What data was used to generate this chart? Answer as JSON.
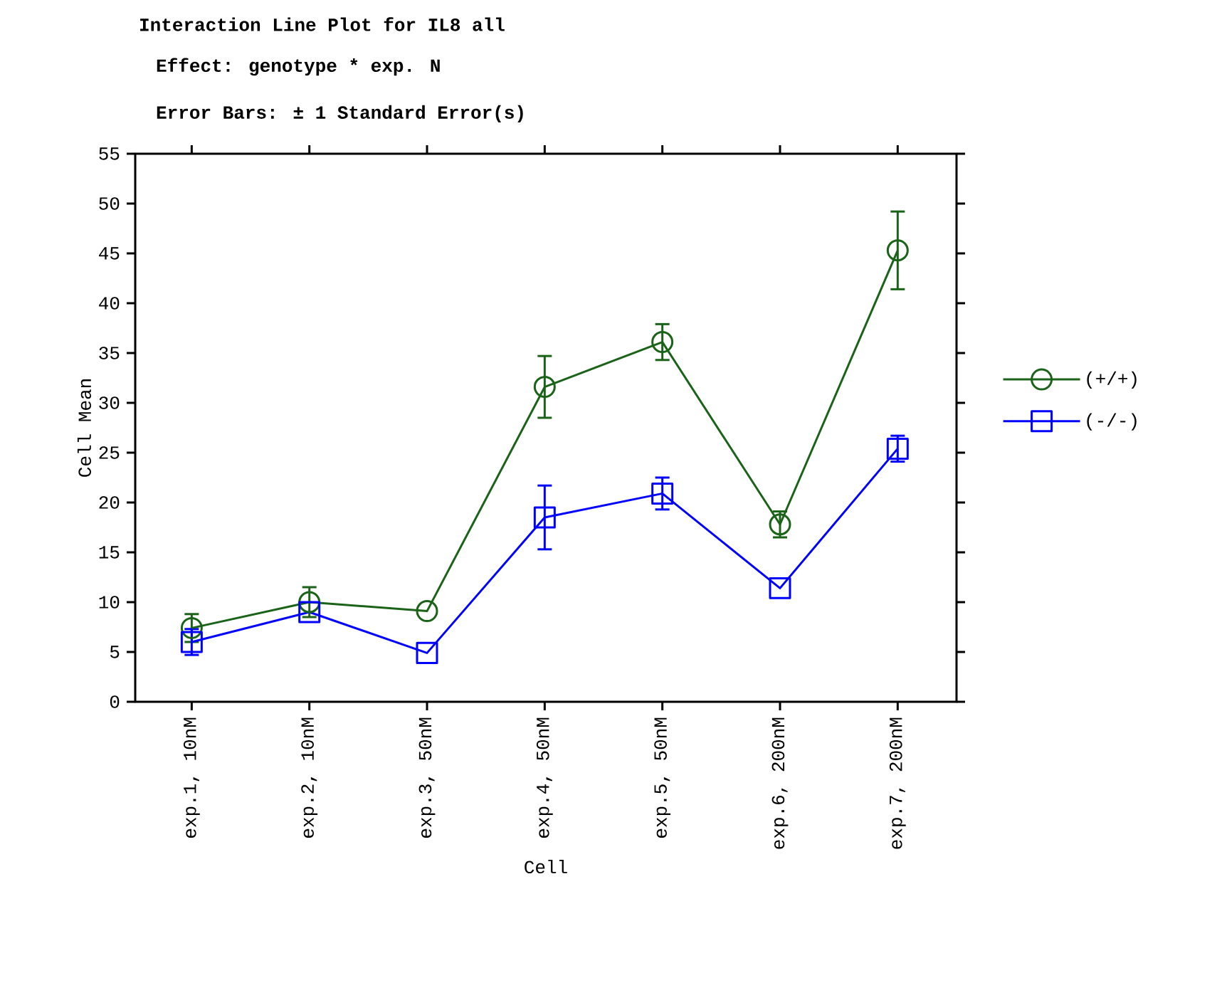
{
  "chart_data": {
    "type": "line",
    "title": "Interaction Line Plot for IL8 all",
    "subtitle": "Effect: genotype * exp. N",
    "annotations": [
      "Error Bars: ± 1 Standard Error(s)"
    ],
    "xlabel": "Cell",
    "ylabel": "Cell Mean",
    "categories": [
      "exp.1, 10nM",
      "exp.2, 10nM",
      "exp.3, 50nM",
      "exp.4, 50nM",
      "exp.5, 50nM",
      "exp.6, 200nM",
      "exp.7, 200nM"
    ],
    "series": [
      {
        "name": "(+/+)",
        "color": "#1a6318",
        "marker": "circle",
        "values": [
          7.4,
          10.0,
          9.1,
          31.6,
          36.1,
          17.8,
          45.3
        ],
        "errors": [
          1.4,
          1.5,
          null,
          3.1,
          1.8,
          1.3,
          3.9
        ]
      },
      {
        "name": "(-/-)",
        "color": "#0000ff",
        "marker": "square",
        "values": [
          6.0,
          9.0,
          4.9,
          18.5,
          20.9,
          11.4,
          25.4
        ],
        "errors": [
          1.3,
          null,
          null,
          3.2,
          1.6,
          null,
          1.3
        ]
      }
    ],
    "ylim": [
      0,
      55
    ],
    "yticks": [
      0,
      5,
      10,
      15,
      20,
      25,
      30,
      35,
      40,
      45,
      50,
      55
    ],
    "legend": "right",
    "grid": false,
    "line_style": "solid"
  }
}
